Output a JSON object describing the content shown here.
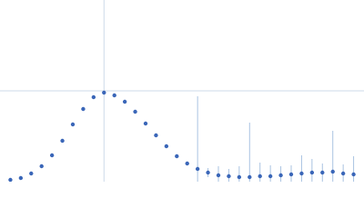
{
  "chart_data": {
    "type": "scatter",
    "x": [
      0.01,
      0.02,
      0.03,
      0.04,
      0.05,
      0.06,
      0.07,
      0.08,
      0.09,
      0.1,
      0.11,
      0.12,
      0.13,
      0.14,
      0.15,
      0.16,
      0.17,
      0.18,
      0.19,
      0.2,
      0.21,
      0.22,
      0.23,
      0.24,
      0.25,
      0.26,
      0.27,
      0.28,
      0.29,
      0.3,
      0.31,
      0.32,
      0.33,
      0.34
    ],
    "series": [
      {
        "color": "#3a66b8",
        "values": [
          0.02,
          0.04,
          0.09,
          0.17,
          0.29,
          0.45,
          0.63,
          0.8,
          0.93,
          0.98,
          0.95,
          0.88,
          0.77,
          0.64,
          0.51,
          0.39,
          0.28,
          0.2,
          0.14,
          0.1,
          0.07,
          0.06,
          0.05,
          0.05,
          0.06,
          0.06,
          0.07,
          0.08,
          0.09,
          0.1,
          0.1,
          0.11,
          0.09,
          0.08
        ],
        "errors": [
          0.005,
          0.005,
          0.005,
          0.005,
          0.005,
          0.005,
          0.005,
          0.005,
          0.005,
          0.005,
          0.005,
          0.005,
          0.005,
          0.005,
          0.005,
          0.01,
          0.01,
          0.02,
          0.8,
          0.05,
          0.1,
          0.08,
          0.12,
          0.6,
          0.15,
          0.12,
          0.1,
          0.1,
          0.2,
          0.15,
          0.1,
          0.45,
          0.1,
          0.2
        ]
      }
    ],
    "xlim": [
      0,
      0.35
    ],
    "ylim": [
      0,
      2
    ],
    "xticks": [
      0.1
    ],
    "yticks": [
      1
    ],
    "grid": true
  }
}
